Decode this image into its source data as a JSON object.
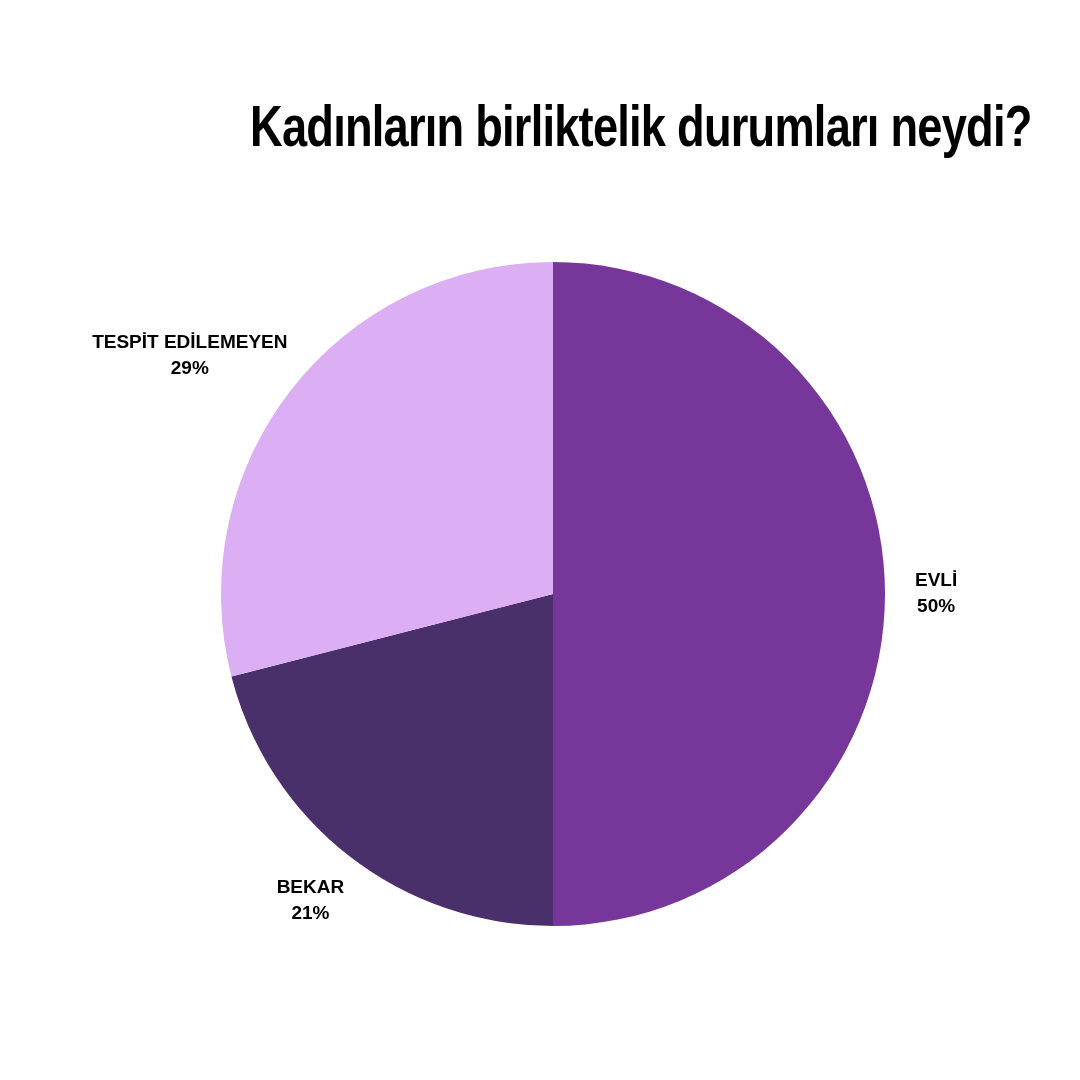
{
  "chart_data": {
    "type": "pie",
    "title": "Kadınların birliktelik durumları neydi?",
    "categories": [
      "EVLİ",
      "BEKAR",
      "TESPİT EDİLEMEYEN"
    ],
    "values": [
      50,
      21,
      29
    ],
    "value_labels": [
      "50%",
      "21%",
      "29%"
    ],
    "colors": [
      "#77379a",
      "#4a306b",
      "#dcaef3"
    ],
    "legend": false
  }
}
